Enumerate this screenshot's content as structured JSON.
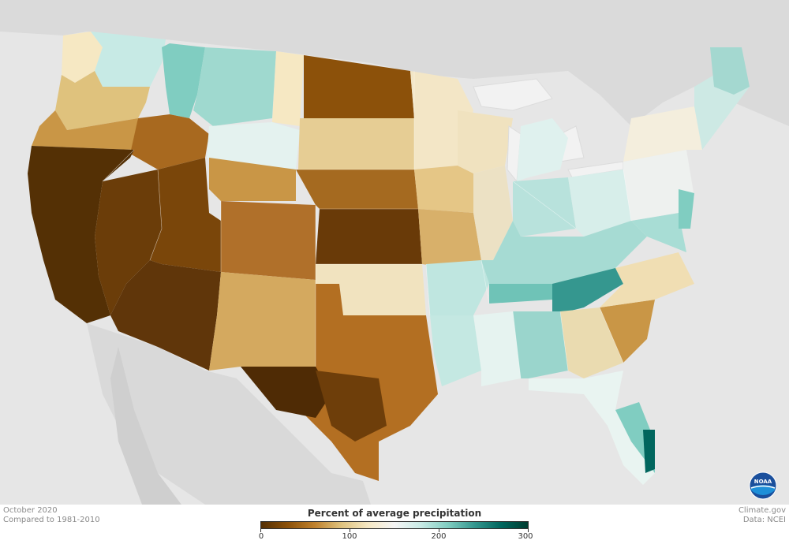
{
  "map": {
    "title": "Percent of average precipitation",
    "date": "October 2020",
    "baseline": "Compared to 1981-2010",
    "credit": "Climate.gov",
    "source": "Data: NCEI",
    "logo_text": "NOAA",
    "legend": {
      "ticks": [
        "0",
        "100",
        "200",
        "300"
      ],
      "values": [
        0,
        100,
        200,
        300
      ],
      "colors": [
        "#543005",
        "#8c510a",
        "#bf812d",
        "#dfc27d",
        "#f6e8c3",
        "#f5f5f5",
        "#c7eae5",
        "#80cdc1",
        "#35978f",
        "#01665e",
        "#003c30"
      ]
    }
  }
}
